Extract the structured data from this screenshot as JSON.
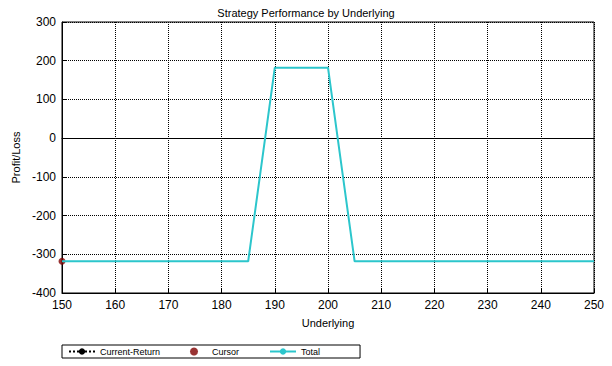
{
  "chart_data": {
    "type": "line",
    "title": "Strategy Performance by Underlying",
    "x_label": "Underlying",
    "y_label": "Profit/Loss",
    "x": [
      150,
      185,
      190,
      200,
      205,
      250
    ],
    "series": [
      {
        "name": "Current-Return",
        "color": "#000000",
        "line_style": "dotted",
        "marker": "none",
        "type": "line",
        "values": [
          null,
          null,
          null,
          null,
          null,
          null
        ]
      },
      {
        "name": "Cursor",
        "color": "#800000",
        "marker": "circle",
        "type": "scatter",
        "values": [
          -318,
          null,
          null,
          null,
          null,
          null
        ]
      },
      {
        "name": "Total",
        "color": "#2cc6cc",
        "line_style": "solid",
        "marker": "none",
        "type": "line",
        "values": [
          -318,
          -318,
          182,
          182,
          -318,
          -318
        ]
      }
    ],
    "xlim": [
      150,
      250
    ],
    "xticks": [
      150,
      160,
      170,
      180,
      190,
      200,
      210,
      220,
      230,
      240,
      250
    ],
    "ylim": [
      -400,
      300
    ],
    "yticks": [
      -400,
      -300,
      -200,
      -100,
      0,
      100,
      200,
      300
    ],
    "grid": true,
    "legend": "lower left"
  }
}
